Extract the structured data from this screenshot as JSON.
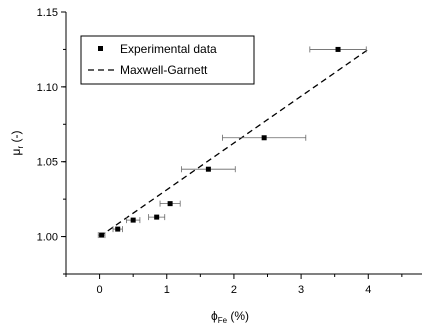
{
  "chart_data": {
    "type": "scatter",
    "xlabel": {
      "main": "ϕ",
      "sub": "Fe",
      "rest": " (%)"
    },
    "ylabel": {
      "main": "μ",
      "sub": "r",
      "rest": " (-)"
    },
    "xlim": [
      -0.5,
      4.8
    ],
    "ylim": [
      0.975,
      1.15
    ],
    "xticks": [
      0,
      1,
      2,
      3,
      4
    ],
    "yticks": [
      1.0,
      1.05,
      1.1,
      1.15
    ],
    "xtick_labels": [
      "0",
      "1",
      "2",
      "3",
      "4"
    ],
    "ytick_labels": [
      "1.00",
      "1.05",
      "1.10",
      "1.15"
    ],
    "grid": false,
    "legend_position": "top-left",
    "series": [
      {
        "name": "Experimental data",
        "style": "square-markers-with-x-error-bars",
        "points": [
          {
            "x": 0.03,
            "y": 1.001,
            "xerr": 0.05
          },
          {
            "x": 0.27,
            "y": 1.005,
            "xerr": 0.07
          },
          {
            "x": 0.5,
            "y": 1.011,
            "xerr": 0.1
          },
          {
            "x": 0.85,
            "y": 1.013,
            "xerr": 0.12
          },
          {
            "x": 1.05,
            "y": 1.022,
            "xerr": 0.15
          },
          {
            "x": 1.62,
            "y": 1.045,
            "xerr": 0.4
          },
          {
            "x": 2.45,
            "y": 1.066,
            "xerr": 0.62
          },
          {
            "x": 3.55,
            "y": 1.125,
            "xerr": 0.42
          }
        ]
      },
      {
        "name": "Maxwell-Garnett",
        "style": "dashed-line",
        "x": [
          0,
          4.0
        ],
        "y": [
          1.0,
          1.125
        ]
      }
    ]
  }
}
